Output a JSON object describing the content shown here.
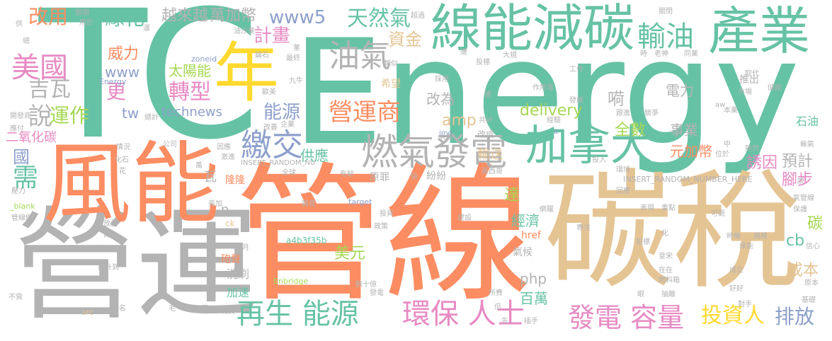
{
  "words": [
    {
      "text": "TC",
      "color": "#66c2a5"
    },
    {
      "text": "Energy",
      "color": "#66c2a5"
    },
    {
      "text": "管線",
      "color": "#fc8d62"
    },
    {
      "text": "碳稅",
      "color": "#e5c494"
    },
    {
      "text": "營運",
      "color": "#b3b3b3"
    },
    {
      "text": "風能",
      "color": "#fc8d62"
    },
    {
      "text": "線能減碳",
      "color": "#66c2a5"
    },
    {
      "text": "產業",
      "color": "#66c2a5"
    },
    {
      "text": "年",
      "color": "#ffd92f"
    },
    {
      "text": "加拿大",
      "color": "#66c2a5"
    },
    {
      "text": "燃氣",
      "color": "#b3b3b3"
    },
    {
      "text": "發電",
      "color": "#b3b3b3"
    },
    {
      "text": "再生 能源",
      "color": "#66c2a5"
    },
    {
      "text": "環保 人士",
      "color": "#e78ac3"
    },
    {
      "text": "發電 容量",
      "color": "#e78ac3"
    },
    {
      "text": "投資人",
      "color": "#ffd92f"
    },
    {
      "text": "排放",
      "color": "#8da0cb"
    },
    {
      "text": "營運商",
      "color": "#fc8d62"
    },
    {
      "text": "油氣",
      "color": "#b3b3b3"
    },
    {
      "text": "繳交",
      "color": "#8da0cb"
    },
    {
      "text": "能源",
      "color": "#8da0cb"
    },
    {
      "text": "輸油",
      "color": "#66c2a5"
    },
    {
      "text": "美國",
      "color": "#e78ac3"
    },
    {
      "text": "吉瓦",
      "color": "#b3b3b3"
    },
    {
      "text": "說",
      "color": "#b3b3b3"
    },
    {
      "text": "運作",
      "color": "#a6d854"
    },
    {
      "text": "需",
      "color": "#66c2a5"
    },
    {
      "text": "國",
      "color": "#8da0cb"
    },
    {
      "text": "轉型",
      "color": "#e78ac3"
    },
    {
      "text": "太陽能",
      "color": "#a6d854"
    },
    {
      "text": "technews",
      "color": "#8da0cb"
    },
    {
      "text": "越來越",
      "color": "#b3b3b3"
    },
    {
      "text": "萬加幣",
      "color": "#b3b3b3"
    },
    {
      "text": "www5",
      "color": "#8da0cb"
    },
    {
      "text": "天然氣",
      "color": "#66c2a5"
    },
    {
      "text": "計畫",
      "color": "#e78ac3"
    },
    {
      "text": "資金",
      "color": "#e5c494"
    },
    {
      "text": "改用",
      "color": "#fc8d62"
    },
    {
      "text": "綠化",
      "color": "#66c2a5"
    },
    {
      "text": "www",
      "color": "#8da0cb"
    },
    {
      "text": "威力",
      "color": "#fc8d62"
    },
    {
      "text": "更",
      "color": "#e78ac3"
    },
    {
      "text": "tw",
      "color": "#8da0cb"
    },
    {
      "text": "二氧化碳",
      "color": "#e78ac3"
    },
    {
      "text": "改為",
      "color": "#b3b3b3"
    },
    {
      "text": "amp",
      "color": "#e5c494"
    },
    {
      "text": "delivery",
      "color": "#a6d854"
    },
    {
      "text": "電力",
      "color": "#b3b3b3"
    },
    {
      "text": "全數",
      "color": "#a6d854"
    },
    {
      "text": "事業",
      "color": "#b3b3b3"
    },
    {
      "text": "元加幣",
      "color": "#fc8d62"
    },
    {
      "text": "預計",
      "color": "#b3b3b3"
    },
    {
      "text": "腳步",
      "color": "#e78ac3"
    },
    {
      "text": "誘因",
      "color": "#e78ac3"
    },
    {
      "text": "供應",
      "color": "#66c2a5"
    },
    {
      "text": "輸送",
      "color": "#e5c494"
    },
    {
      "text": "達",
      "color": "#a6d854"
    },
    {
      "text": "經濟",
      "color": "#66c2a5"
    },
    {
      "text": "美元",
      "color": "#a6d854"
    },
    {
      "text": "php",
      "color": "#b3b3b3"
    },
    {
      "text": "百萬",
      "color": "#66c2a5"
    },
    {
      "text": "成本",
      "color": "#e5c494"
    },
    {
      "text": "cb",
      "color": "#66c2a5"
    },
    {
      "text": "碳",
      "color": "#a6d854"
    },
    {
      "text": "石油",
      "color": "#66c2a5"
    },
    {
      "text": "推出",
      "color": "#b3b3b3"
    },
    {
      "text": "嗬",
      "color": "#b3b3b3"
    },
    {
      "text": "瓦",
      "color": "#b3b3b3"
    },
    {
      "text": "洗刷",
      "color": "#b3b3b3"
    },
    {
      "text": "加速",
      "color": "#66c2a5"
    },
    {
      "text": "n",
      "color": "#b3b3b3"
    },
    {
      "text": "href",
      "color": "#fc8d62"
    },
    {
      "text": "氣候",
      "color": "#b3b3b3"
    },
    {
      "text": "隆隆",
      "color": "#fc8d62"
    },
    {
      "text": "砲聲",
      "color": "#fc8d62"
    },
    {
      "text": "希望",
      "color": "#e5c494"
    },
    {
      "text": "原罪",
      "color": "#b3b3b3"
    },
    {
      "text": "紛紛",
      "color": "#b3b3b3"
    },
    {
      "text": "INSERT_RANDOM_NUMBER_HERE",
      "color": "#b3b3b3"
    },
    {
      "text": "INSERT_RANDOM_NU",
      "color": "#b3b3b3"
    },
    {
      "text": "Enbridge",
      "color": "#a6d854"
    },
    {
      "text": "a4b3f35b",
      "color": "#66c2a5"
    },
    {
      "text": "zoneid",
      "color": "#8da0cb"
    },
    {
      "text": "Energy",
      "color": "#8da0cb"
    },
    {
      "text": "target",
      "color": "#8da0cb"
    },
    {
      "text": "_blank",
      "color": "#a6d854"
    },
    {
      "text": "src",
      "color": "#e5c494"
    },
    {
      "text": "ck",
      "color": "#e5c494"
    },
    {
      "text": "img",
      "color": "#8da0cb"
    },
    {
      "text": "aw",
      "color": "#b3b3b3"
    },
    {
      "text": "a",
      "color": "#8da0cb"
    },
    {
      "text": "預期",
      "color": "#b3b3b3"
    },
    {
      "text": "超過",
      "color": "#b3b3b3"
    },
    {
      "text": "關閉",
      "color": "#b3b3b3"
    },
    {
      "text": "用於",
      "color": "#b3b3b3"
    },
    {
      "text": "供",
      "color": "#b3b3b3"
    },
    {
      "text": "總",
      "color": "#b3b3b3"
    },
    {
      "text": "運",
      "color": "#b3b3b3"
    },
    {
      "text": "油沙業",
      "color": "#b3b3b3"
    },
    {
      "text": "鑄石",
      "color": "#b3b3b3"
    },
    {
      "text": "最終",
      "color": "#b3b3b3"
    },
    {
      "text": "九牛",
      "color": "#b3b3b3"
    },
    {
      "text": "類似",
      "color": "#b3b3b3"
    },
    {
      "text": "投標",
      "color": "#b3b3b3"
    },
    {
      "text": "採用",
      "color": "#b3b3b3"
    },
    {
      "text": "大規",
      "color": "#b3b3b3"
    },
    {
      "text": "時",
      "color": "#b3b3b3"
    },
    {
      "text": "老神",
      "color": "#b3b3b3"
    },
    {
      "text": "同業",
      "color": "#b3b3b3"
    },
    {
      "text": "工作",
      "color": "#b3b3b3"
    },
    {
      "text": "取代",
      "color": "#b3b3b3"
    },
    {
      "text": "市場",
      "color": "#b3b3b3"
    },
    {
      "text": "儲能",
      "color": "#b3b3b3"
    },
    {
      "text": "作用電",
      "color": "#b3b3b3"
    },
    {
      "text": "發展",
      "color": "#b3b3b3"
    },
    {
      "text": "德",
      "color": "#b3b3b3"
    },
    {
      "text": "開發商",
      "color": "#b3b3b3"
    },
    {
      "text": "歐美",
      "color": "#b3b3b3"
    },
    {
      "text": "改善",
      "color": "#b3b3b3"
    },
    {
      "text": "企業",
      "color": "#b3b3b3"
    },
    {
      "text": "共計",
      "color": "#b3b3b3"
    },
    {
      "text": "經驗",
      "color": "#b3b3b3"
    },
    {
      "text": "跟進",
      "color": "#b3b3b3"
    },
    {
      "text": "競爭",
      "color": "#b3b3b3"
    },
    {
      "text": "本業",
      "color": "#b3b3b3"
    },
    {
      "text": "應付",
      "color": "#b3b3b3"
    },
    {
      "text": "總計",
      "color": "#b3b3b3"
    },
    {
      "text": "大振",
      "color": "#b3b3b3"
    },
    {
      "text": "改成",
      "color": "#b3b3b3"
    },
    {
      "text": "情況",
      "color": "#b3b3b3"
    },
    {
      "text": "公司",
      "color": "#b3b3b3"
    },
    {
      "text": "因應",
      "color": "#b3b3b3"
    },
    {
      "text": "激進",
      "color": "#b3b3b3"
    },
    {
      "text": "位於",
      "color": "#b3b3b3"
    },
    {
      "text": "中",
      "color": "#b3b3b3"
    },
    {
      "text": "熱烈",
      "color": "#b3b3b3"
    },
    {
      "text": "輸氣",
      "color": "#b3b3b3"
    },
    {
      "text": "化石",
      "color": "#b3b3b3"
    },
    {
      "text": "萬",
      "color": "#b3b3b3"
    },
    {
      "text": "全球",
      "color": "#b3b3b3"
    },
    {
      "text": "花",
      "color": "#b3b3b3"
    },
    {
      "text": "有餘",
      "color": "#b3b3b3"
    },
    {
      "text": "快",
      "color": "#b3b3b3"
    },
    {
      "text": "墨西哥",
      "color": "#b3b3b3"
    },
    {
      "text": "投入",
      "color": "#b3b3b3"
    },
    {
      "text": "環境",
      "color": "#b3b3b3"
    },
    {
      "text": "壓力",
      "color": "#b3b3b3"
    },
    {
      "text": "回應",
      "color": "#b3b3b3"
    },
    {
      "text": "美加",
      "color": "#b3b3b3"
    },
    {
      "text": "雜音",
      "color": "#b3b3b3"
    },
    {
      "text": "氣管線",
      "color": "#b3b3b3"
    },
    {
      "text": "保護",
      "color": "#b3b3b3"
    },
    {
      "text": "管線網",
      "color": "#b3b3b3"
    },
    {
      "text": "排放量",
      "color": "#b3b3b3"
    },
    {
      "text": "投資",
      "color": "#b3b3b3"
    },
    {
      "text": "建設",
      "color": "#b3b3b3"
    },
    {
      "text": "網羅",
      "color": "#b3b3b3"
    },
    {
      "text": "表現",
      "color": "#b3b3b3"
    },
    {
      "text": "重點",
      "color": "#b3b3b3"
    },
    {
      "text": "可觀",
      "color": "#b3b3b3"
    },
    {
      "text": "政策",
      "color": "#b3b3b3"
    },
    {
      "text": "高",
      "color": "#b3b3b3"
    },
    {
      "text": "專注",
      "color": "#b3b3b3"
    },
    {
      "text": "時機",
      "color": "#b3b3b3"
    },
    {
      "text": "規模",
      "color": "#b3b3b3"
    },
    {
      "text": "招標",
      "color": "#b3b3b3"
    },
    {
      "text": "信心",
      "color": "#b3b3b3"
    },
    {
      "text": "綠能",
      "color": "#b3b3b3"
    },
    {
      "text": "模",
      "color": "#b3b3b3"
    },
    {
      "text": "提升到",
      "color": "#b3b3b3"
    },
    {
      "text": "月",
      "color": "#b3b3b3"
    },
    {
      "text": "皇宋",
      "color": "#b3b3b3"
    },
    {
      "text": "在在",
      "color": "#b3b3b3"
    },
    {
      "text": "成立",
      "color": "#b3b3b3"
    },
    {
      "text": "數十億",
      "color": "#b3b3b3"
    },
    {
      "text": "燃料箱",
      "color": "#b3b3b3"
    },
    {
      "text": "眼",
      "color": "#b3b3b3"
    },
    {
      "text": "原本",
      "color": "#b3b3b3"
    },
    {
      "text": "不貲",
      "color": "#b3b3b3"
    },
    {
      "text": "發電",
      "color": "#b3b3b3"
    },
    {
      "text": "所費",
      "color": "#b3b3b3"
    },
    {
      "text": "抽離",
      "color": "#b3b3b3"
    },
    {
      "text": "好好",
      "color": "#b3b3b3"
    },
    {
      "text": "污名",
      "color": "#b3b3b3"
    },
    {
      "text": "倍",
      "color": "#b3b3b3"
    },
    {
      "text": "對手",
      "color": "#b3b3b3"
    },
    {
      "text": "基礎",
      "color": "#b3b3b3"
    },
    {
      "text": "毛",
      "color": "#b3b3b3"
    },
    {
      "text": "正",
      "color": "#b3b3b3"
    },
    {
      "text": "北美",
      "color": "#b3b3b3"
    },
    {
      "text": "先",
      "color": "#b3b3b3"
    },
    {
      "text": "插手",
      "color": "#b3b3b3"
    },
    {
      "text": "遭",
      "color": "#b3b3b3"
    },
    {
      "text": "化",
      "color": "#b3b3b3"
    },
    {
      "text": "說",
      "color": "#b3b3b3"
    },
    {
      "text": "董",
      "color": "#b3b3b3"
    }
  ]
}
